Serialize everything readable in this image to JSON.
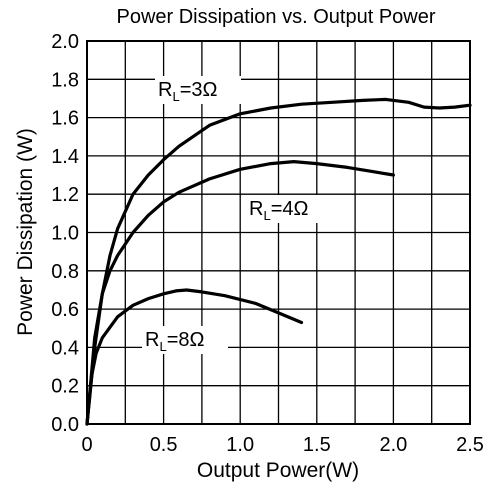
{
  "chart_data": {
    "type": "line",
    "title": "Power Dissipation vs. Output Power",
    "xlabel": "Output Power(W)",
    "ylabel": "Power Dissipation (W)",
    "xlim": [
      0,
      2.5
    ],
    "ylim": [
      0,
      2.0
    ],
    "x_ticks": [
      "0",
      "0.5",
      "1.0",
      "1.5",
      "2.0",
      "2.5"
    ],
    "y_ticks": [
      "0.0",
      "0.2",
      "0.4",
      "0.6",
      "0.8",
      "1.0",
      "1.2",
      "1.4",
      "1.6",
      "1.8",
      "2.0"
    ],
    "grid": true,
    "legend": "none",
    "series": [
      {
        "label_main": "R",
        "label_sub": "L",
        "label_tail": "=3Ω",
        "points": [
          [
            0,
            0
          ],
          [
            0.05,
            0.4
          ],
          [
            0.1,
            0.68
          ],
          [
            0.15,
            0.88
          ],
          [
            0.2,
            1.02
          ],
          [
            0.3,
            1.2
          ],
          [
            0.4,
            1.3
          ],
          [
            0.5,
            1.38
          ],
          [
            0.6,
            1.45
          ],
          [
            0.8,
            1.56
          ],
          [
            1.0,
            1.62
          ],
          [
            1.2,
            1.65
          ],
          [
            1.4,
            1.67
          ],
          [
            1.6,
            1.68
          ],
          [
            1.8,
            1.69
          ],
          [
            1.95,
            1.695
          ],
          [
            2.1,
            1.68
          ],
          [
            2.2,
            1.655
          ],
          [
            2.3,
            1.65
          ],
          [
            2.4,
            1.655
          ],
          [
            2.5,
            1.665
          ]
        ]
      },
      {
        "label_main": "R",
        "label_sub": "L",
        "label_tail": "=4Ω",
        "points": [
          [
            0,
            0
          ],
          [
            0.05,
            0.45
          ],
          [
            0.1,
            0.68
          ],
          [
            0.15,
            0.8
          ],
          [
            0.2,
            0.88
          ],
          [
            0.3,
            1.0
          ],
          [
            0.4,
            1.09
          ],
          [
            0.5,
            1.16
          ],
          [
            0.6,
            1.21
          ],
          [
            0.8,
            1.28
          ],
          [
            1.0,
            1.33
          ],
          [
            1.2,
            1.36
          ],
          [
            1.35,
            1.37
          ],
          [
            1.5,
            1.36
          ],
          [
            1.7,
            1.34
          ],
          [
            1.85,
            1.32
          ],
          [
            2.0,
            1.3
          ]
        ]
      },
      {
        "label_main": "R",
        "label_sub": "L",
        "label_tail": "=8Ω",
        "points": [
          [
            0,
            0
          ],
          [
            0.03,
            0.25
          ],
          [
            0.06,
            0.37
          ],
          [
            0.1,
            0.45
          ],
          [
            0.2,
            0.56
          ],
          [
            0.3,
            0.62
          ],
          [
            0.4,
            0.655
          ],
          [
            0.5,
            0.68
          ],
          [
            0.58,
            0.695
          ],
          [
            0.65,
            0.7
          ],
          [
            0.75,
            0.69
          ],
          [
            0.9,
            0.67
          ],
          [
            1.1,
            0.63
          ],
          [
            1.25,
            0.58
          ],
          [
            1.4,
            0.53
          ]
        ]
      }
    ]
  }
}
